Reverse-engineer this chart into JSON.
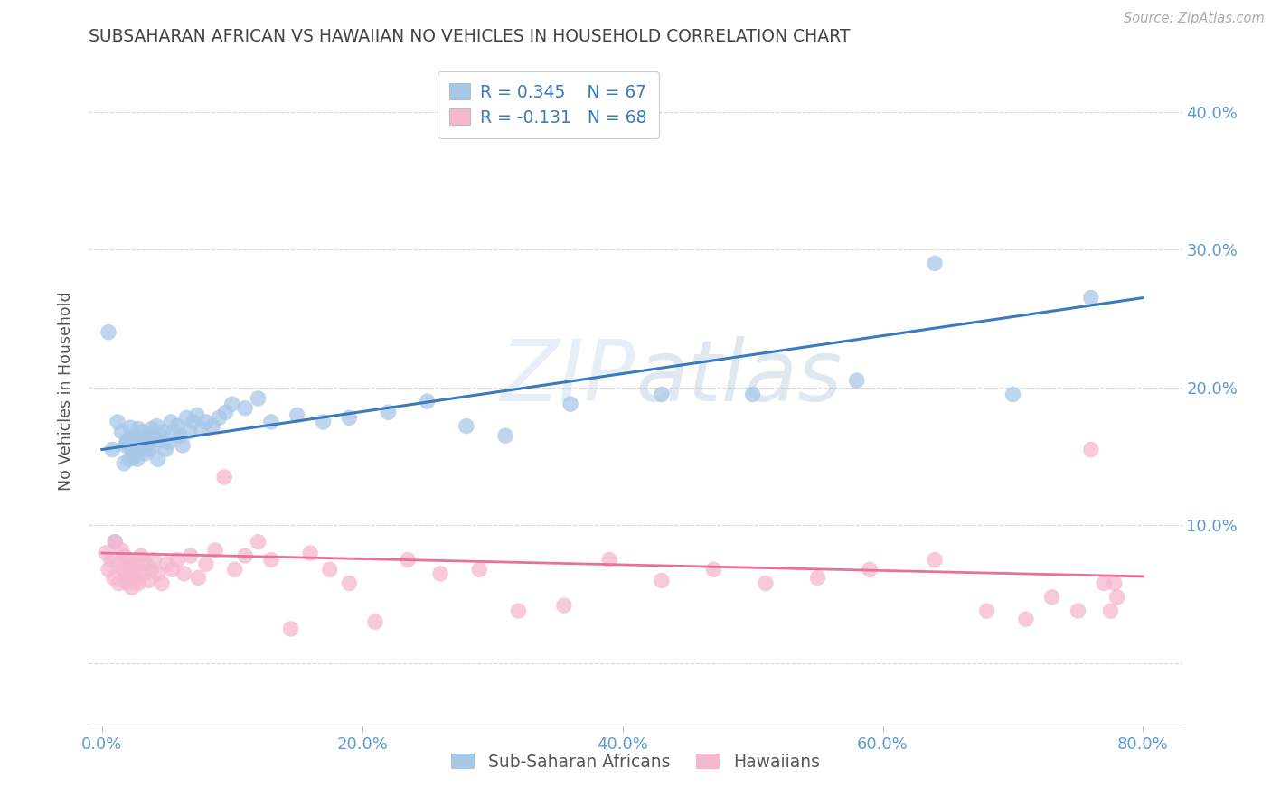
{
  "title": "SUBSAHARAN AFRICAN VS HAWAIIAN NO VEHICLES IN HOUSEHOLD CORRELATION CHART",
  "source": "Source: ZipAtlas.com",
  "xlabel_ticks": [
    "0.0%",
    "20.0%",
    "40.0%",
    "60.0%",
    "80.0%"
  ],
  "xlabel_tick_vals": [
    0.0,
    0.2,
    0.4,
    0.6,
    0.8
  ],
  "ylabel": "No Vehicles in Household",
  "right_ytick_vals": [
    0.0,
    0.1,
    0.2,
    0.3,
    0.4
  ],
  "right_ytick_labels": [
    "",
    "10.0%",
    "20.0%",
    "30.0%",
    "40.0%"
  ],
  "xlim": [
    -0.01,
    0.83
  ],
  "ylim": [
    -0.045,
    0.44
  ],
  "blue_R": 0.345,
  "blue_N": 67,
  "pink_R": -0.131,
  "pink_N": 68,
  "legend_label_blue": "Sub-Saharan Africans",
  "legend_label_pink": "Hawaiians",
  "blue_color": "#a8c8e8",
  "blue_line_color": "#3a7abf",
  "pink_color": "#f5b8ce",
  "pink_line_color": "#e8709a",
  "blue_scatter_x": [
    0.005,
    0.008,
    0.01,
    0.012,
    0.015,
    0.017,
    0.018,
    0.019,
    0.02,
    0.021,
    0.022,
    0.023,
    0.024,
    0.025,
    0.026,
    0.027,
    0.028,
    0.029,
    0.03,
    0.031,
    0.032,
    0.033,
    0.034,
    0.035,
    0.036,
    0.037,
    0.038,
    0.04,
    0.041,
    0.042,
    0.043,
    0.045,
    0.047,
    0.049,
    0.051,
    0.053,
    0.055,
    0.058,
    0.06,
    0.062,
    0.065,
    0.067,
    0.07,
    0.073,
    0.076,
    0.08,
    0.085,
    0.09,
    0.095,
    0.1,
    0.11,
    0.12,
    0.13,
    0.15,
    0.17,
    0.19,
    0.22,
    0.25,
    0.28,
    0.31,
    0.36,
    0.43,
    0.5,
    0.58,
    0.64,
    0.7,
    0.76
  ],
  "blue_scatter_y": [
    0.24,
    0.155,
    0.088,
    0.175,
    0.168,
    0.145,
    0.158,
    0.16,
    0.162,
    0.148,
    0.171,
    0.155,
    0.15,
    0.165,
    0.158,
    0.148,
    0.17,
    0.162,
    0.155,
    0.168,
    0.16,
    0.152,
    0.158,
    0.162,
    0.155,
    0.165,
    0.17,
    0.158,
    0.162,
    0.172,
    0.148,
    0.165,
    0.168,
    0.155,
    0.16,
    0.175,
    0.168,
    0.172,
    0.165,
    0.158,
    0.178,
    0.168,
    0.175,
    0.18,
    0.17,
    0.175,
    0.172,
    0.178,
    0.182,
    0.188,
    0.185,
    0.192,
    0.175,
    0.18,
    0.175,
    0.178,
    0.182,
    0.19,
    0.172,
    0.165,
    0.188,
    0.195,
    0.195,
    0.205,
    0.29,
    0.195,
    0.265
  ],
  "pink_scatter_x": [
    0.003,
    0.005,
    0.007,
    0.009,
    0.01,
    0.012,
    0.013,
    0.015,
    0.016,
    0.017,
    0.018,
    0.019,
    0.02,
    0.021,
    0.022,
    0.023,
    0.024,
    0.025,
    0.026,
    0.027,
    0.028,
    0.03,
    0.032,
    0.034,
    0.036,
    0.038,
    0.04,
    0.043,
    0.046,
    0.05,
    0.054,
    0.058,
    0.063,
    0.068,
    0.074,
    0.08,
    0.087,
    0.094,
    0.102,
    0.11,
    0.12,
    0.13,
    0.145,
    0.16,
    0.175,
    0.19,
    0.21,
    0.235,
    0.26,
    0.29,
    0.32,
    0.355,
    0.39,
    0.43,
    0.47,
    0.51,
    0.55,
    0.59,
    0.64,
    0.68,
    0.71,
    0.73,
    0.75,
    0.76,
    0.77,
    0.775,
    0.778,
    0.78
  ],
  "pink_scatter_y": [
    0.08,
    0.068,
    0.075,
    0.062,
    0.088,
    0.072,
    0.058,
    0.082,
    0.068,
    0.078,
    0.065,
    0.058,
    0.075,
    0.062,
    0.068,
    0.055,
    0.072,
    0.06,
    0.065,
    0.072,
    0.058,
    0.078,
    0.065,
    0.072,
    0.06,
    0.068,
    0.075,
    0.065,
    0.058,
    0.072,
    0.068,
    0.075,
    0.065,
    0.078,
    0.062,
    0.072,
    0.082,
    0.135,
    0.068,
    0.078,
    0.088,
    0.075,
    0.025,
    0.08,
    0.068,
    0.058,
    0.03,
    0.075,
    0.065,
    0.068,
    0.038,
    0.042,
    0.075,
    0.06,
    0.068,
    0.058,
    0.062,
    0.068,
    0.075,
    0.038,
    0.032,
    0.048,
    0.038,
    0.155,
    0.058,
    0.038,
    0.058,
    0.048
  ],
  "watermark_zip": "ZIP",
  "watermark_atlas": "atlas",
  "grid_color": "#d8d8d8",
  "background_color": "#ffffff",
  "title_color": "#444444",
  "axis_tick_color": "#5b9bd5",
  "ylabel_color": "#555555"
}
